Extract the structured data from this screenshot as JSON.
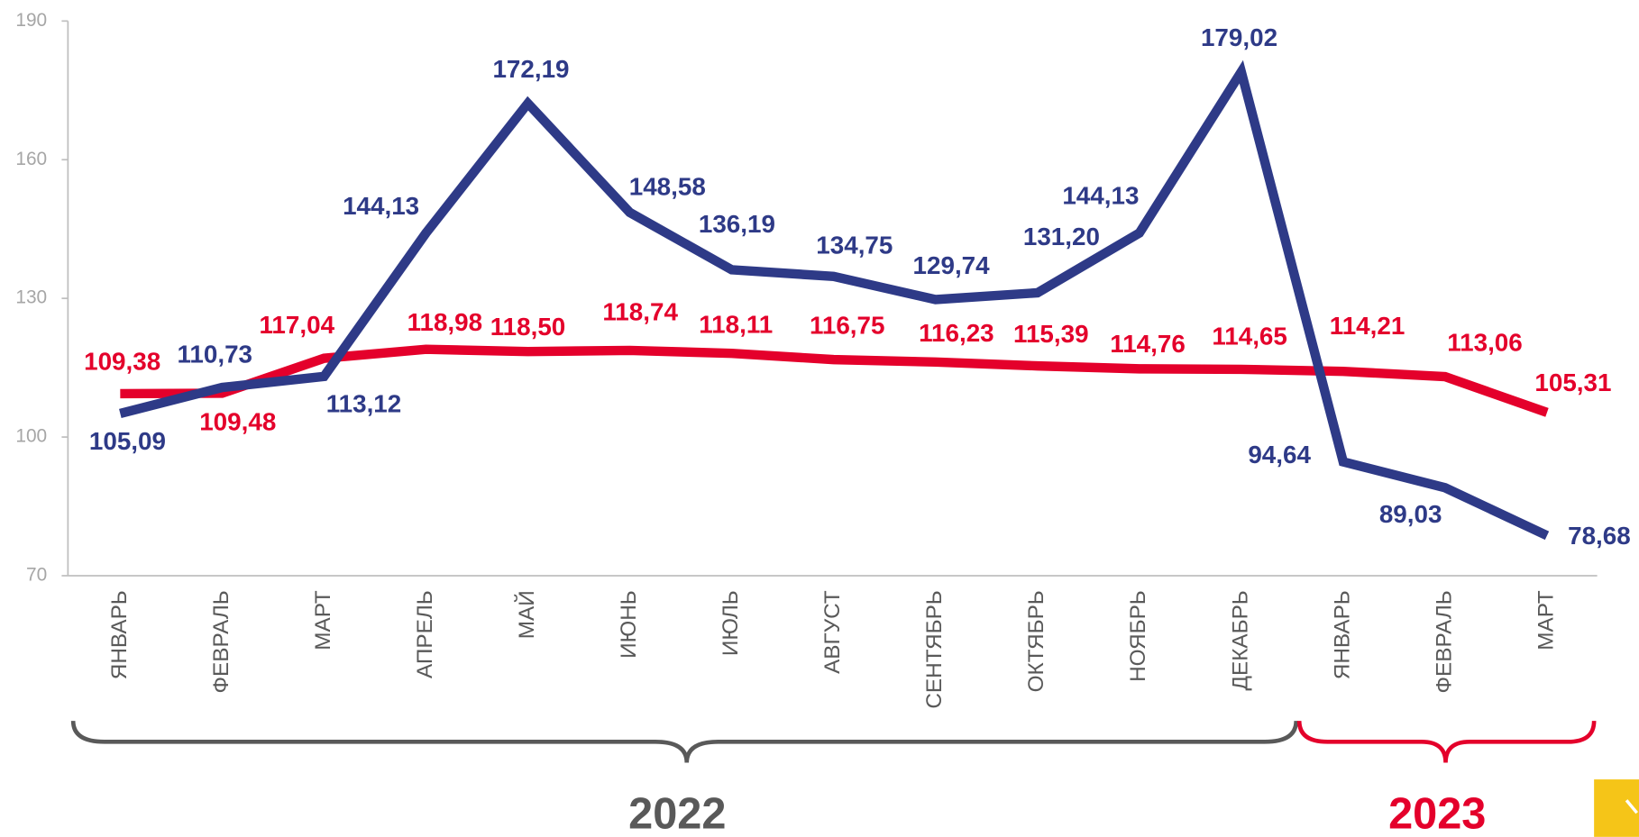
{
  "chart_data": {
    "type": "line",
    "categories": [
      "ЯНВАРЬ",
      "ФЕВРАЛЬ",
      "МАРТ",
      "АПРЕЛЬ",
      "МАЙ",
      "ИЮНЬ",
      "ИЮЛЬ",
      "АВГУСТ",
      "СЕНТЯБРЬ",
      "ОКТЯБРЬ",
      "НОЯБРЬ",
      "ДЕКАБРЬ",
      "ЯНВАРЬ",
      "ФЕВРАЛЬ",
      "МАРТ"
    ],
    "series": [
      {
        "color": "#2e3a87",
        "values": [
          105.09,
          110.73,
          113.12,
          144.13,
          172.19,
          148.58,
          136.19,
          134.75,
          129.74,
          131.2,
          144.13,
          179.02,
          94.64,
          89.03,
          78.68
        ],
        "value_labels": [
          "105,09",
          "110,73",
          "113,12",
          "144,13",
          "172,19",
          "148,58",
          "136,19",
          "134,75",
          "129,74",
          "131,20",
          "144,13",
          "179,02",
          "94,64",
          "89,03",
          "78,68"
        ]
      },
      {
        "color": "#e4002b",
        "values": [
          109.38,
          109.48,
          117.04,
          118.98,
          118.5,
          118.74,
          118.11,
          116.75,
          116.23,
          115.39,
          114.76,
          114.65,
          114.21,
          113.06,
          105.31
        ],
        "value_labels": [
          "109,38",
          "109,48",
          "117,04",
          "118,98",
          "118,50",
          "118,74",
          "118,11",
          "116,75",
          "116,23",
          "115,39",
          "114,76",
          "114,65",
          "114,21",
          "113,06",
          "105,31"
        ]
      }
    ],
    "ylim": [
      70,
      190
    ],
    "yticks": [
      70,
      100,
      130,
      160,
      190
    ],
    "annotations": [
      "2022",
      "2023"
    ]
  }
}
